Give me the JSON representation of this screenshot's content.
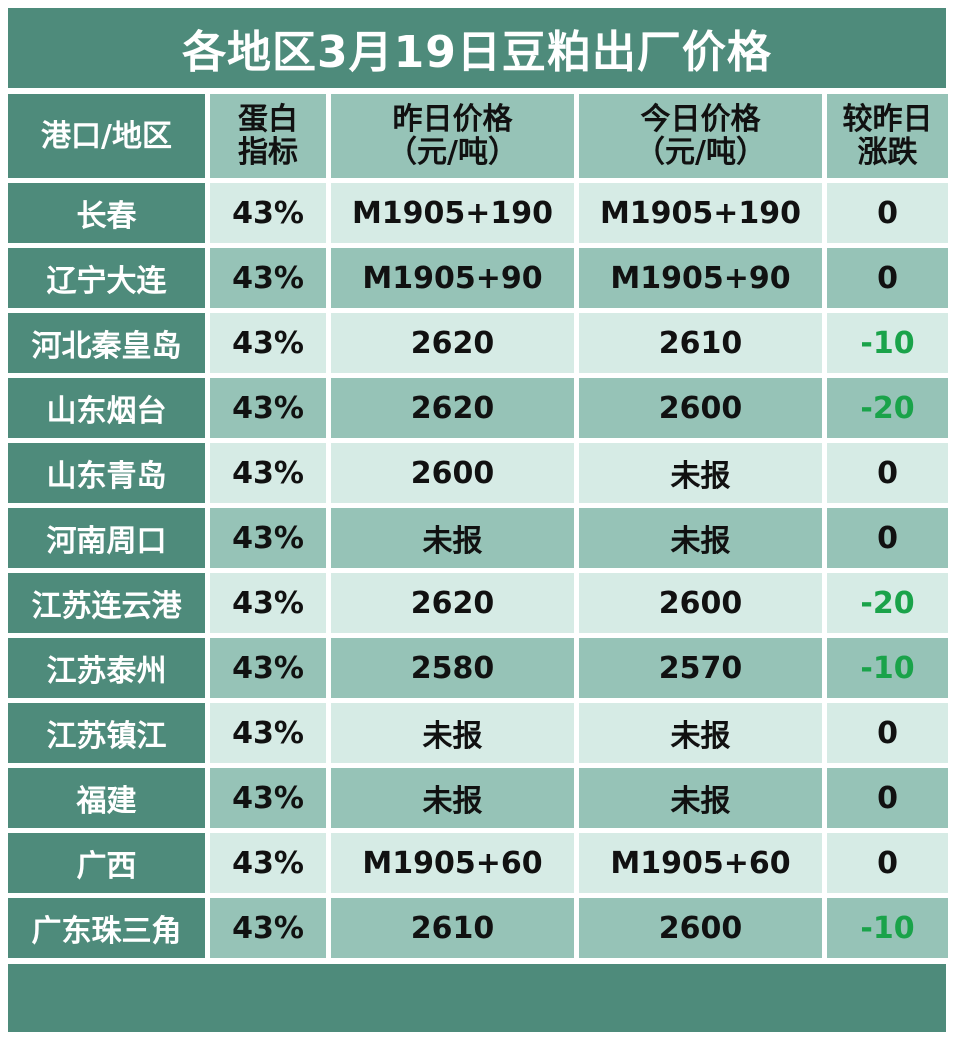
{
  "title": "各地区3月19日豆粕出厂价格",
  "headers": [
    {
      "lines": [
        "港口/地区"
      ]
    },
    {
      "lines": [
        "蛋白",
        "指标"
      ]
    },
    {
      "lines": [
        "昨日价格",
        "（元/吨）"
      ]
    },
    {
      "lines": [
        "今日价格",
        "（元/吨）"
      ]
    },
    {
      "lines": [
        "较昨日",
        "涨跌"
      ]
    }
  ],
  "rows": [
    {
      "region": "长春",
      "protein": "43%",
      "yesterday": "M1905+190",
      "today": "M1905+190",
      "change": "0"
    },
    {
      "region": "辽宁大连",
      "protein": "43%",
      "yesterday": "M1905+90",
      "today": "M1905+90",
      "change": "0"
    },
    {
      "region": "河北秦皇岛",
      "protein": "43%",
      "yesterday": "2620",
      "today": "2610",
      "change": "-10"
    },
    {
      "region": "山东烟台",
      "protein": "43%",
      "yesterday": "2620",
      "today": "2600",
      "change": "-20"
    },
    {
      "region": "山东青岛",
      "protein": "43%",
      "yesterday": "2600",
      "today": "未报",
      "change": "0"
    },
    {
      "region": "河南周口",
      "protein": "43%",
      "yesterday": "未报",
      "today": "未报",
      "change": "0"
    },
    {
      "region": "江苏连云港",
      "protein": "43%",
      "yesterday": "2620",
      "today": "2600",
      "change": "-20"
    },
    {
      "region": "江苏泰州",
      "protein": "43%",
      "yesterday": "2580",
      "today": "2570",
      "change": "-10"
    },
    {
      "region": "江苏镇江",
      "protein": "43%",
      "yesterday": "未报",
      "today": "未报",
      "change": "0"
    },
    {
      "region": "福建",
      "protein": "43%",
      "yesterday": "未报",
      "today": "未报",
      "change": "0"
    },
    {
      "region": "广西",
      "protein": "43%",
      "yesterday": "M1905+60",
      "today": "M1905+60",
      "change": "0"
    },
    {
      "region": "广东珠三角",
      "protein": "43%",
      "yesterday": "2610",
      "today": "2600",
      "change": "-10"
    }
  ],
  "colors": {
    "dark_green": "#4e8b7b",
    "mid_green": "#96c3b7",
    "light_green": "#d6ebe5",
    "negative_change": "#1aa34a"
  }
}
